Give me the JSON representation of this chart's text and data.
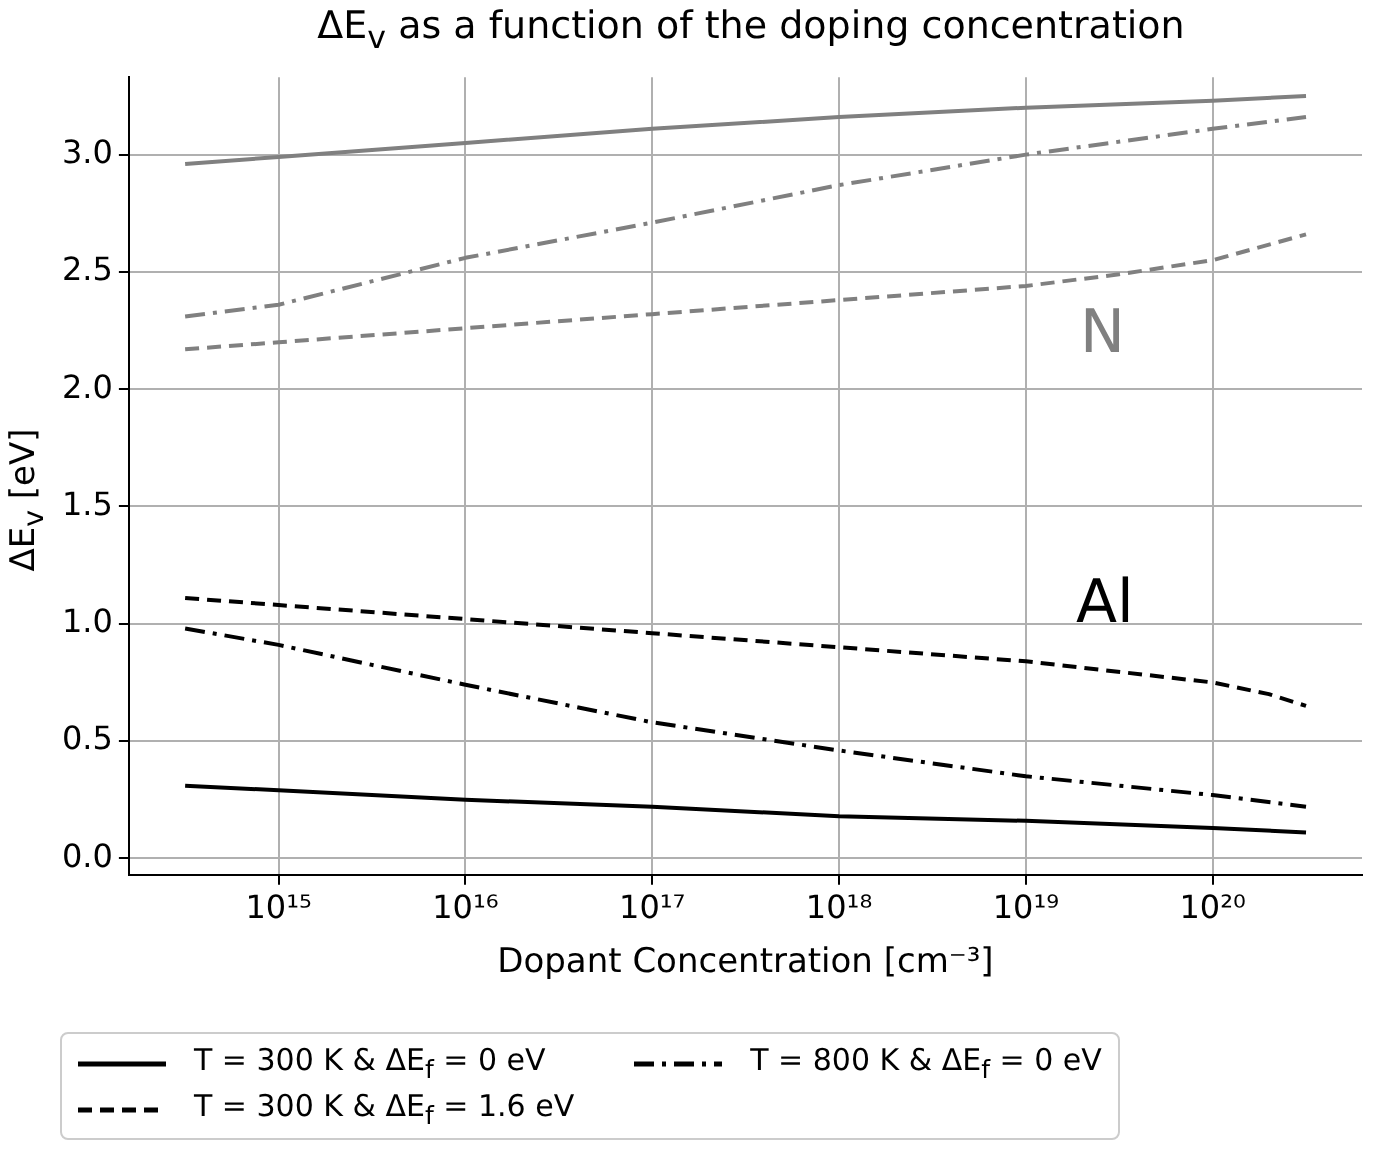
{
  "chart_data": {
    "type": "line",
    "title": "ΔE$_{v}$ as a function of the doping concentration",
    "xlabel": "Dopant Concentration [cm⁻³]",
    "ylabel": "ΔE$_{v}$ [eV]",
    "log": "x",
    "xlim": [
      158000000000000.0,
      6.3e+20
    ],
    "ylim": [
      -0.07,
      3.33
    ],
    "xticks": [
      {
        "value": 1000000000000000.0,
        "label": "10¹⁵"
      },
      {
        "value": 1e+16,
        "label": "10¹⁶"
      },
      {
        "value": 1e+17,
        "label": "10¹⁷"
      },
      {
        "value": 1e+18,
        "label": "10¹⁸"
      },
      {
        "value": 1e+19,
        "label": "10¹⁹"
      },
      {
        "value": 1e+20,
        "label": "10²⁰"
      }
    ],
    "yticks": [
      {
        "value": 0,
        "label": "0.0"
      },
      {
        "value": 0.5,
        "label": "0.5"
      },
      {
        "value": 1,
        "label": "1.0"
      },
      {
        "value": 1.5,
        "label": "1.5"
      },
      {
        "value": 2,
        "label": "2.0"
      },
      {
        "value": 2.5,
        "label": "2.5"
      },
      {
        "value": 3,
        "label": "3.0"
      }
    ],
    "grid": true,
    "legend": "bottom",
    "marker": "none",
    "series": [
      {
        "name": "T = 300 K & ΔE$_{f}$ = 0 eV",
        "color": "#000000",
        "line_style": "solid",
        "x": [
          316000000000000.0,
          1000000000000000.0,
          1e+16,
          1e+17,
          1e+18,
          1e+19,
          1e+20,
          3.16e+20
        ],
        "values": [
          0.31,
          0.29,
          0.25,
          0.22,
          0.18,
          0.16,
          0.13,
          0.11
        ]
      },
      {
        "name": "T = 300 K & ΔE$_{f}$ = 1.6 eV",
        "color": "#000000",
        "line_style": "dashed",
        "x": [
          316000000000000.0,
          1000000000000000.0,
          1e+16,
          1e+17,
          1e+18,
          1e+19,
          1e+20,
          2e+20,
          3.16e+20
        ],
        "values": [
          1.11,
          1.08,
          1.02,
          0.96,
          0.9,
          0.84,
          0.75,
          0.7,
          0.65
        ]
      },
      {
        "name": "T = 800 K & ΔE$_{f}$ = 0 eV",
        "color": "#000000",
        "line_style": "dashdot",
        "x": [
          316000000000000.0,
          1000000000000000.0,
          1e+16,
          1e+17,
          1e+18,
          1e+19,
          1e+20,
          3.16e+20
        ],
        "values": [
          0.98,
          0.91,
          0.74,
          0.58,
          0.46,
          0.35,
          0.27,
          0.22
        ]
      },
      {
        "color": "#808080",
        "line_style": "solid",
        "x": [
          316000000000000.0,
          1000000000000000.0,
          1e+16,
          1e+17,
          1e+18,
          1e+19,
          1e+20,
          3.16e+20
        ],
        "values": [
          2.96,
          2.99,
          3.05,
          3.11,
          3.16,
          3.2,
          3.23,
          3.25
        ]
      },
      {
        "color": "#808080",
        "line_style": "dashed",
        "x": [
          316000000000000.0,
          1000000000000000.0,
          1e+16,
          1e+17,
          1e+18,
          1e+19,
          3.16e+19,
          1e+20,
          3.16e+20
        ],
        "values": [
          2.17,
          2.2,
          2.26,
          2.32,
          2.38,
          2.44,
          2.49,
          2.55,
          2.66
        ]
      },
      {
        "color": "#808080",
        "line_style": "dashdot",
        "x": [
          316000000000000.0,
          1000000000000000.0,
          1e+16,
          1e+17,
          1e+18,
          1e+19,
          1e+20,
          3.16e+20
        ],
        "values": [
          2.31,
          2.36,
          2.56,
          2.71,
          2.87,
          3.0,
          3.11,
          3.16
        ]
      }
    ],
    "annotations": [
      "N",
      "Al"
    ]
  }
}
